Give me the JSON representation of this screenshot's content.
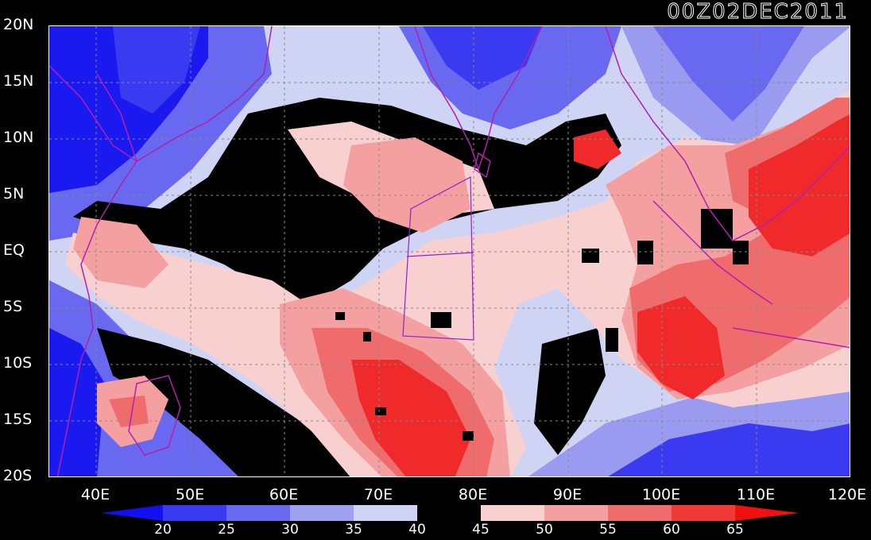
{
  "title": "00Z02DEC2011",
  "lat_labels": [
    "20N",
    "15N",
    "10N",
    "5N",
    "EQ",
    "5S",
    "10S",
    "15S",
    "20S"
  ],
  "lon_labels": [
    "40E",
    "50E",
    "60E",
    "70E",
    "80E",
    "90E",
    "100E",
    "110E",
    "120E"
  ],
  "colorbar": {
    "labels": [
      "20",
      "25",
      "30",
      "35",
      "40",
      "45",
      "50",
      "55",
      "60",
      "65"
    ],
    "colors": [
      "#1010f0",
      "#3a3af0",
      "#6868f0",
      "#a0a0f0",
      "#d0d4f4",
      "#000000",
      "#f8d0d0",
      "#f4a0a0",
      "#f06c6c",
      "#f03a3a",
      "#f01010"
    ]
  },
  "colors": {
    "deep_blue": "#1a1af0",
    "blue": "#5050f0",
    "light_blue": "#9a9af0",
    "pale_blue": "#d0d4f4",
    "black": "#000000",
    "pale_red": "#f8d0d0",
    "light_red": "#f4a0a0",
    "red": "#f06c6c",
    "deep_red": "#f02a2a",
    "coastline": "#b020b0"
  },
  "map": {
    "lat_range": [
      -20,
      20
    ],
    "lon_range": [
      35,
      120
    ]
  }
}
